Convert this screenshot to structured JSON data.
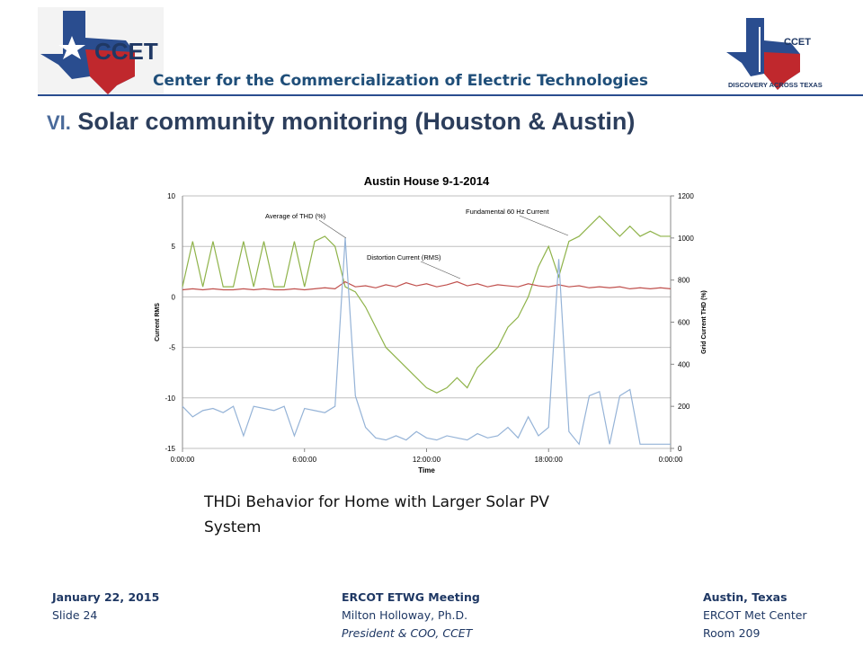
{
  "header": {
    "org": "Center for the Commercialization of Electric Technologies",
    "logo_left": "CCET",
    "logo_right": "CCET",
    "logo_right_tagline": "DISCOVERY ACROSS TEXAS"
  },
  "slide_title": {
    "number": "VI.",
    "text": "Solar community monitoring (Houston & Austin)"
  },
  "chart_data": {
    "type": "line",
    "title": "Austin House 9-1-2014",
    "x_label": "Time",
    "y_label": "Current RMS",
    "y2_label": "Grid Current THD (%)",
    "x": [
      0,
      0.5,
      1,
      1.5,
      2,
      2.5,
      3,
      3.5,
      4,
      4.5,
      5,
      5.5,
      6,
      6.5,
      7,
      7.5,
      8,
      8.5,
      9,
      9.5,
      10,
      10.5,
      11,
      11.5,
      12,
      12.5,
      13,
      13.5,
      14,
      14.5,
      15,
      15.5,
      16,
      16.5,
      17,
      17.5,
      18,
      18.5,
      19,
      19.5,
      20,
      20.5,
      21,
      21.5,
      22,
      22.5,
      23,
      23.5,
      24
    ],
    "xlim": [
      0,
      24
    ],
    "xticks": [
      {
        "value": 0,
        "label": "0:00:00"
      },
      {
        "value": 6,
        "label": "6:00:00"
      },
      {
        "value": 12,
        "label": "12:00:00"
      },
      {
        "value": 18,
        "label": "18:00:00"
      },
      {
        "value": 24,
        "label": "0:00:00"
      }
    ],
    "ylim": [
      -15,
      10
    ],
    "yticks": [
      -15,
      -10,
      -5,
      0,
      5,
      10
    ],
    "y2lim": [
      0,
      1200
    ],
    "y2ticks": [
      0,
      200,
      400,
      600,
      800,
      1000,
      1200
    ],
    "grid": true,
    "series": [
      {
        "name": "Fundamental 60 Hz Current",
        "color": "#8fb34a",
        "values": [
          1,
          5.5,
          1,
          5.5,
          1,
          1,
          5.5,
          1,
          5.5,
          1,
          1,
          5.5,
          1,
          5.5,
          6,
          5,
          1,
          0.5,
          -1,
          -3,
          -5,
          -6,
          -7,
          -8,
          -9,
          -9.5,
          -9,
          -8,
          -9,
          -7,
          -6,
          -5,
          -3,
          -2,
          0,
          3,
          5,
          2,
          5.5,
          6,
          7,
          8,
          7,
          6,
          7,
          6,
          6.5,
          6,
          6
        ]
      },
      {
        "name": "Distortion Current (RMS)",
        "color": "#c0504d",
        "values": [
          0.7,
          0.8,
          0.7,
          0.8,
          0.7,
          0.7,
          0.8,
          0.7,
          0.8,
          0.7,
          0.7,
          0.8,
          0.7,
          0.8,
          0.9,
          0.8,
          1.5,
          1.0,
          1.1,
          0.9,
          1.2,
          1.0,
          1.4,
          1.1,
          1.3,
          1.0,
          1.2,
          1.5,
          1.1,
          1.3,
          1.0,
          1.2,
          1.1,
          1.0,
          1.3,
          1.1,
          1.0,
          1.2,
          1.0,
          1.1,
          0.9,
          1.0,
          0.9,
          1.0,
          0.8,
          0.9,
          0.8,
          0.9,
          0.8
        ]
      },
      {
        "name": "Average of THD (%)",
        "color": "#95b3d7",
        "axis": "y2",
        "values": [
          200,
          150,
          180,
          190,
          170,
          200,
          60,
          200,
          190,
          180,
          200,
          60,
          190,
          180,
          170,
          200,
          1000,
          250,
          100,
          50,
          40,
          60,
          40,
          80,
          50,
          40,
          60,
          50,
          40,
          70,
          50,
          60,
          100,
          50,
          150,
          60,
          100,
          900,
          80,
          20,
          250,
          270,
          20,
          250,
          280,
          20,
          20,
          20,
          20
        ]
      }
    ]
  },
  "caption": "THDi Behavior for Home with Larger Solar PV System",
  "footer": {
    "left": [
      "January 22, 2015",
      "Slide 24"
    ],
    "center": [
      "ERCOT ETWG Meeting",
      "Milton Holloway, Ph.D.",
      "President & COO, CCET"
    ],
    "right": [
      "Austin, Texas",
      "ERCOT Met Center",
      "Room 209"
    ]
  }
}
